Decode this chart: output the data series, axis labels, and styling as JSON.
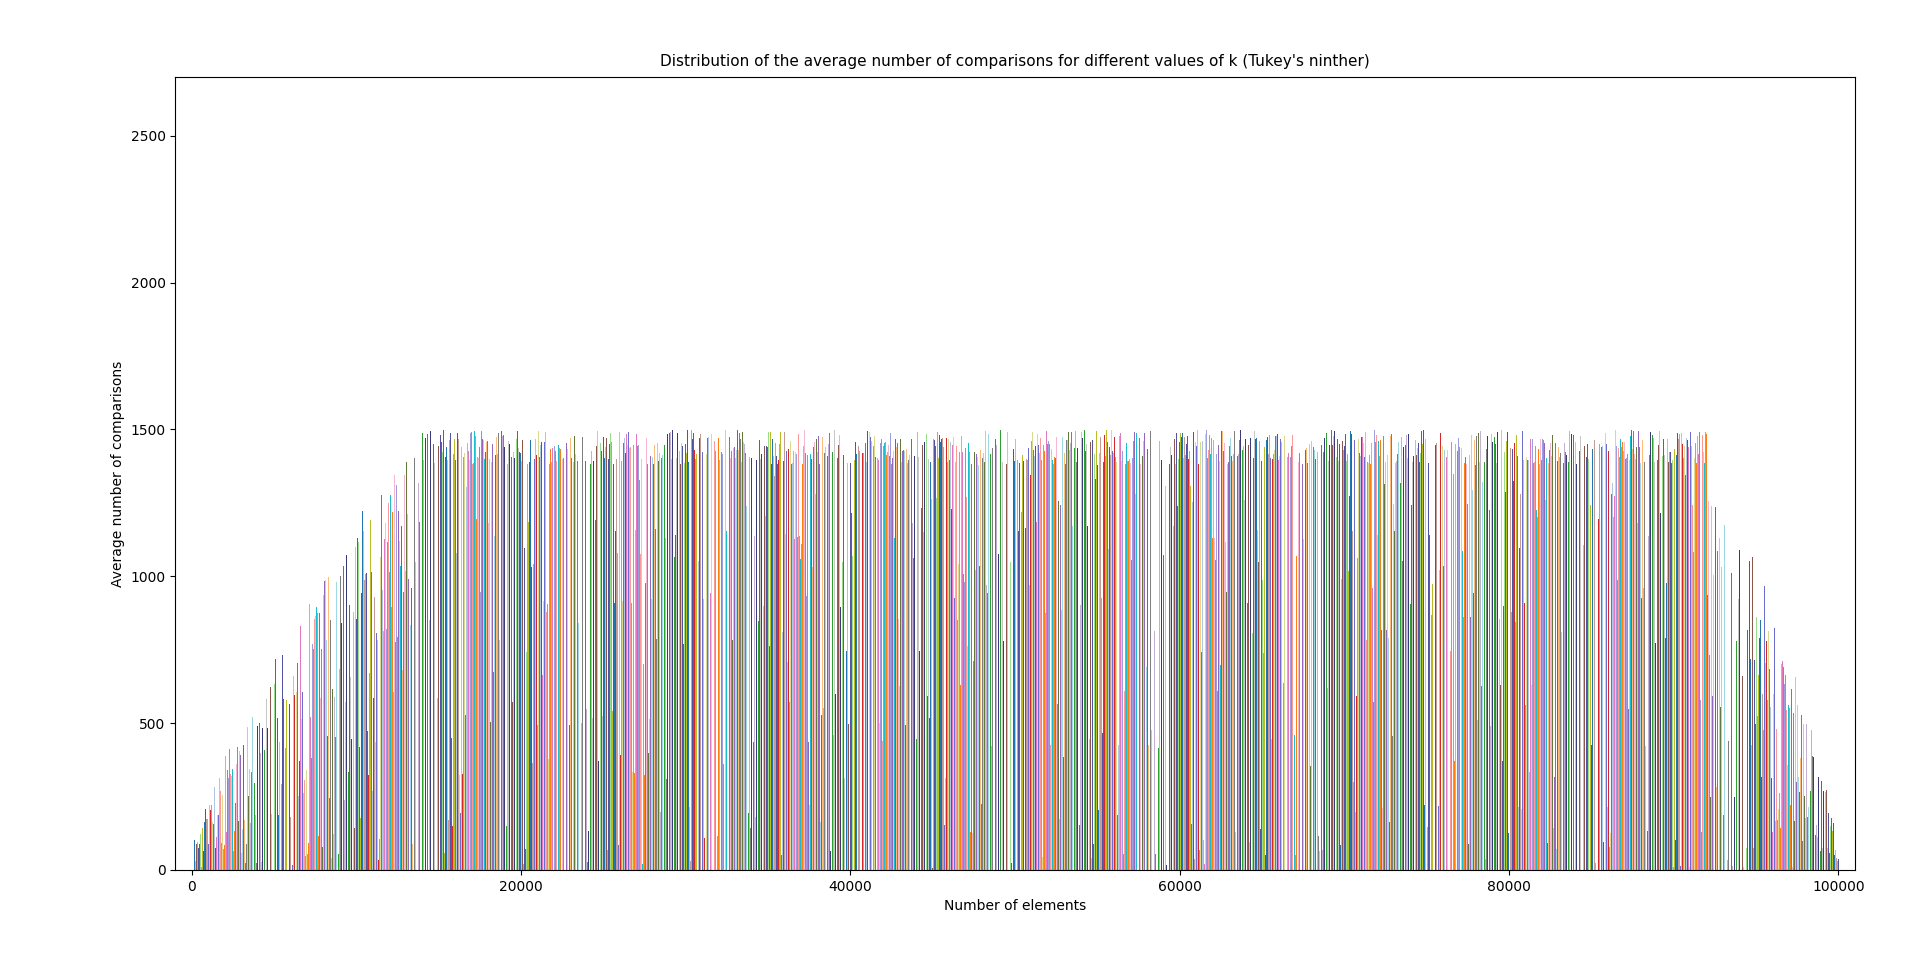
{
  "title": "Distribution of the average number of comparisons for different values of k (Tukey's ninther)",
  "xlabel": "Number of elements",
  "ylabel": "Average number of comparisons",
  "xlim": [
    -1000,
    101000
  ],
  "ylim": [
    0,
    2700
  ],
  "yticks": [
    0,
    500,
    1000,
    1500,
    2000,
    2500
  ],
  "xticks": [
    0,
    20000,
    40000,
    60000,
    80000,
    100000
  ],
  "xtick_labels": [
    "0",
    "20000",
    "40000",
    "60000",
    "80000",
    "100000"
  ],
  "n_max": 100000,
  "background_color": "#ffffff",
  "figsize": [
    19.2,
    9.77
  ],
  "dpi": 100
}
